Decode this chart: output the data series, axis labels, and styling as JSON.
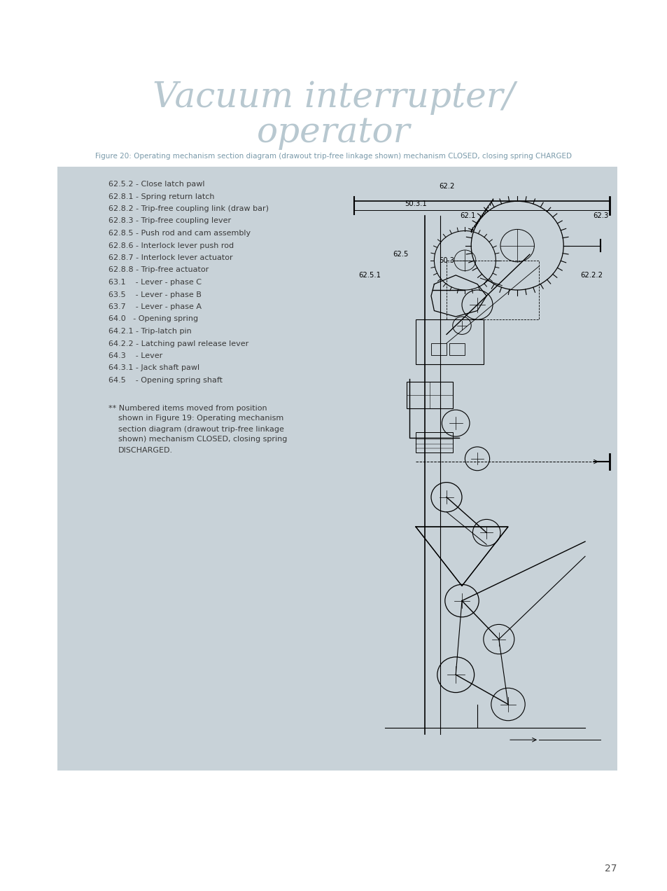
{
  "title_line1": "Vacuum interrupter/",
  "title_line2": "operator",
  "title_color": "#b8c8d0",
  "title_fontsize": 36,
  "figure_caption": "Figure 20: Operating mechanism section diagram (drawout trip-free linkage shown) mechanism CLOSED, closing spring CHARGED",
  "caption_color": "#7a9aaa",
  "caption_fontsize": 7.5,
  "page_bg": "#ffffff",
  "box_bg": "#c8d2d8",
  "legend_items": [
    "62.5.2 - Close latch pawl",
    "62.8.1 - Spring return latch",
    "62.8.2 - Trip-free coupling link (draw bar)",
    "62.8.3 - Trip-free coupling lever",
    "62.8.5 - Push rod and cam assembly",
    "62.8.6 - Interlock lever push rod",
    "62.8.7 - Interlock lever actuator",
    "62.8.8 - Trip-free actuator",
    "63.1    - Lever - phase C",
    "63.5    - Lever - phase B",
    "63.7    - Lever - phase A",
    "64.0   - Opening spring",
    "64.2.1 - Trip-latch pin",
    "64.2.2 - Latching pawl release lever",
    "64.3    - Lever",
    "64.3.1 - Jack shaft pawl",
    "64.5    - Opening spring shaft"
  ],
  "footnote_lines": [
    "** Numbered items moved from position",
    "shown in Figure 19: Operating mechanism",
    "section diagram (drawout trip-free linkage",
    "shown) mechanism CLOSED, closing spring",
    "DISCHARGED."
  ],
  "text_color": "#3a3a3a",
  "text_fontsize": 8.0,
  "page_number": "27"
}
